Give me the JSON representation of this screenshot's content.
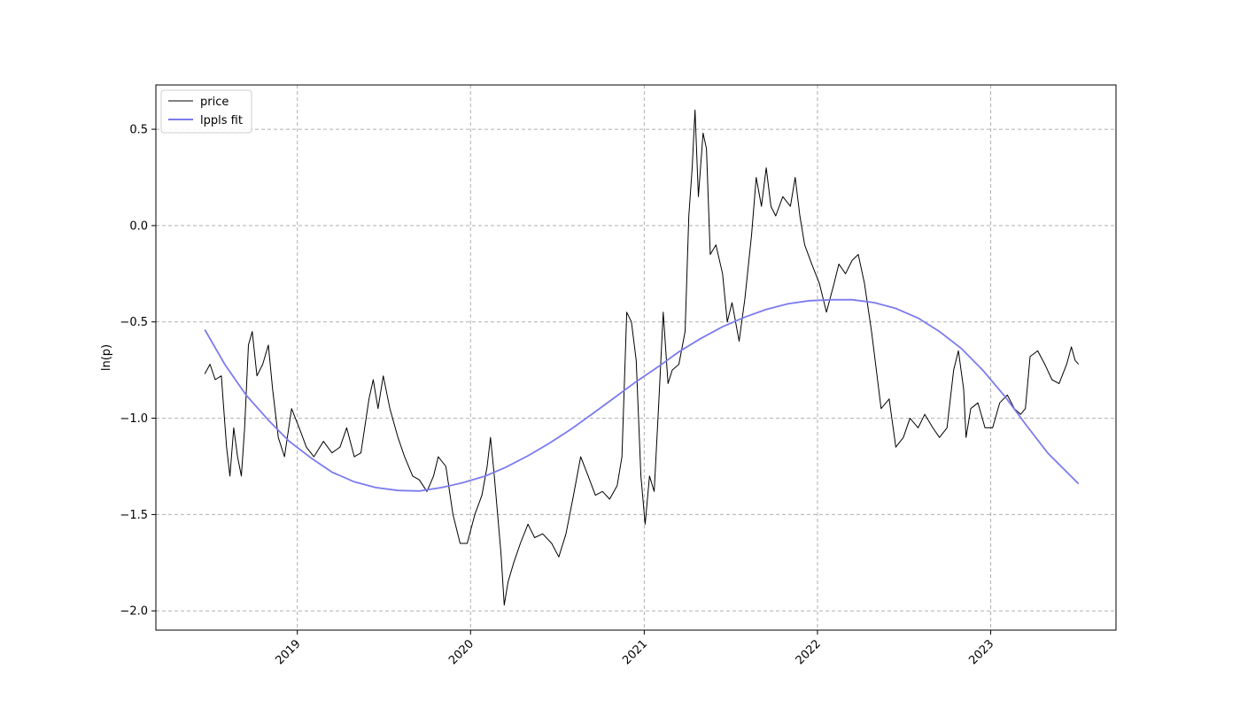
{
  "chart_data": {
    "type": "line",
    "title": "",
    "xlabel": "",
    "ylabel": "ln(p)",
    "xlim": [
      "2018-03-09",
      "2023-09-22"
    ],
    "ylim": [
      -2.1,
      0.73
    ],
    "grid": true,
    "legend_position": "top-left",
    "x_ticks": [
      {
        "date": "2019-01-01",
        "label": "2019"
      },
      {
        "date": "2020-01-01",
        "label": "2020"
      },
      {
        "date": "2021-01-01",
        "label": "2021"
      },
      {
        "date": "2022-01-01",
        "label": "2022"
      },
      {
        "date": "2023-01-01",
        "label": "2023"
      }
    ],
    "y_ticks": [
      {
        "value": 0.5,
        "label": "0.5"
      },
      {
        "value": 0.0,
        "label": "0.0"
      },
      {
        "value": -0.5,
        "label": "−0.5"
      },
      {
        "value": -1.0,
        "label": "−1.0"
      },
      {
        "value": -1.5,
        "label": "−1.5"
      },
      {
        "value": -2.0,
        "label": "−2.0"
      }
    ],
    "series": [
      {
        "name": "price",
        "color": "#000000",
        "points": [
          [
            "2018-06-20",
            -0.77
          ],
          [
            "2018-07-01",
            -0.72
          ],
          [
            "2018-07-12",
            -0.8
          ],
          [
            "2018-07-25",
            -0.78
          ],
          [
            "2018-08-05",
            -1.15
          ],
          [
            "2018-08-12",
            -1.3
          ],
          [
            "2018-08-20",
            -1.05
          ],
          [
            "2018-08-28",
            -1.2
          ],
          [
            "2018-09-05",
            -1.3
          ],
          [
            "2018-09-12",
            -1.05
          ],
          [
            "2018-09-20",
            -0.62
          ],
          [
            "2018-09-28",
            -0.55
          ],
          [
            "2018-10-08",
            -0.78
          ],
          [
            "2018-10-20",
            -0.72
          ],
          [
            "2018-11-01",
            -0.62
          ],
          [
            "2018-11-10",
            -0.85
          ],
          [
            "2018-11-22",
            -1.1
          ],
          [
            "2018-12-05",
            -1.2
          ],
          [
            "2018-12-20",
            -0.95
          ],
          [
            "2019-01-05",
            -1.05
          ],
          [
            "2019-01-20",
            -1.15
          ],
          [
            "2019-02-05",
            -1.2
          ],
          [
            "2019-02-25",
            -1.12
          ],
          [
            "2019-03-15",
            -1.18
          ],
          [
            "2019-04-01",
            -1.15
          ],
          [
            "2019-04-15",
            -1.05
          ],
          [
            "2019-05-01",
            -1.2
          ],
          [
            "2019-05-15",
            -1.18
          ],
          [
            "2019-06-01",
            -0.9
          ],
          [
            "2019-06-10",
            -0.8
          ],
          [
            "2019-06-20",
            -0.95
          ],
          [
            "2019-07-01",
            -0.78
          ],
          [
            "2019-07-15",
            -0.95
          ],
          [
            "2019-08-01",
            -1.1
          ],
          [
            "2019-08-15",
            -1.2
          ],
          [
            "2019-09-01",
            -1.3
          ],
          [
            "2019-09-15",
            -1.32
          ],
          [
            "2019-10-01",
            -1.38
          ],
          [
            "2019-10-15",
            -1.3
          ],
          [
            "2019-10-25",
            -1.2
          ],
          [
            "2019-11-10",
            -1.25
          ],
          [
            "2019-11-25",
            -1.5
          ],
          [
            "2019-12-10",
            -1.65
          ],
          [
            "2019-12-25",
            -1.65
          ],
          [
            "2020-01-10",
            -1.5
          ],
          [
            "2020-01-25",
            -1.4
          ],
          [
            "2020-02-05",
            -1.25
          ],
          [
            "2020-02-12",
            -1.1
          ],
          [
            "2020-02-20",
            -1.3
          ],
          [
            "2020-03-05",
            -1.7
          ],
          [
            "2020-03-12",
            -1.97
          ],
          [
            "2020-03-20",
            -1.85
          ],
          [
            "2020-04-01",
            -1.75
          ],
          [
            "2020-04-15",
            -1.65
          ],
          [
            "2020-05-01",
            -1.55
          ],
          [
            "2020-05-15",
            -1.62
          ],
          [
            "2020-06-01",
            -1.6
          ],
          [
            "2020-06-20",
            -1.65
          ],
          [
            "2020-07-05",
            -1.72
          ],
          [
            "2020-07-20",
            -1.6
          ],
          [
            "2020-08-05",
            -1.4
          ],
          [
            "2020-08-20",
            -1.2
          ],
          [
            "2020-09-05",
            -1.3
          ],
          [
            "2020-09-20",
            -1.4
          ],
          [
            "2020-10-05",
            -1.38
          ],
          [
            "2020-10-20",
            -1.42
          ],
          [
            "2020-11-05",
            -1.35
          ],
          [
            "2020-11-15",
            -1.2
          ],
          [
            "2020-11-25",
            -0.45
          ],
          [
            "2020-12-05",
            -0.5
          ],
          [
            "2020-12-15",
            -0.7
          ],
          [
            "2020-12-25",
            -1.3
          ],
          [
            "2021-01-03",
            -1.55
          ],
          [
            "2021-01-12",
            -1.3
          ],
          [
            "2021-01-22",
            -1.38
          ],
          [
            "2021-02-01",
            -0.9
          ],
          [
            "2021-02-10",
            -0.45
          ],
          [
            "2021-02-20",
            -0.82
          ],
          [
            "2021-03-01",
            -0.75
          ],
          [
            "2021-03-15",
            -0.72
          ],
          [
            "2021-03-28",
            -0.55
          ],
          [
            "2021-04-05",
            0.05
          ],
          [
            "2021-04-12",
            0.3
          ],
          [
            "2021-04-18",
            0.6
          ],
          [
            "2021-04-25",
            0.15
          ],
          [
            "2021-05-05",
            0.48
          ],
          [
            "2021-05-12",
            0.4
          ],
          [
            "2021-05-20",
            -0.15
          ],
          [
            "2021-06-01",
            -0.1
          ],
          [
            "2021-06-15",
            -0.25
          ],
          [
            "2021-06-25",
            -0.5
          ],
          [
            "2021-07-05",
            -0.4
          ],
          [
            "2021-07-20",
            -0.6
          ],
          [
            "2021-08-01",
            -0.38
          ],
          [
            "2021-08-15",
            -0.05
          ],
          [
            "2021-08-25",
            0.25
          ],
          [
            "2021-09-05",
            0.1
          ],
          [
            "2021-09-15",
            0.3
          ],
          [
            "2021-09-25",
            0.1
          ],
          [
            "2021-10-05",
            0.05
          ],
          [
            "2021-10-20",
            0.15
          ],
          [
            "2021-11-05",
            0.1
          ],
          [
            "2021-11-15",
            0.25
          ],
          [
            "2021-11-25",
            0.05
          ],
          [
            "2021-12-05",
            -0.1
          ],
          [
            "2021-12-20",
            -0.2
          ],
          [
            "2022-01-05",
            -0.3
          ],
          [
            "2022-01-20",
            -0.45
          ],
          [
            "2022-02-05",
            -0.3
          ],
          [
            "2022-02-15",
            -0.2
          ],
          [
            "2022-03-01",
            -0.25
          ],
          [
            "2022-03-15",
            -0.18
          ],
          [
            "2022-03-28",
            -0.15
          ],
          [
            "2022-04-10",
            -0.3
          ],
          [
            "2022-04-25",
            -0.55
          ],
          [
            "2022-05-05",
            -0.75
          ],
          [
            "2022-05-15",
            -0.95
          ],
          [
            "2022-06-01",
            -0.9
          ],
          [
            "2022-06-15",
            -1.15
          ],
          [
            "2022-07-01",
            -1.1
          ],
          [
            "2022-07-15",
            -1.0
          ],
          [
            "2022-08-01",
            -1.05
          ],
          [
            "2022-08-15",
            -0.98
          ],
          [
            "2022-09-01",
            -1.05
          ],
          [
            "2022-09-15",
            -1.1
          ],
          [
            "2022-10-01",
            -1.05
          ],
          [
            "2022-10-15",
            -0.75
          ],
          [
            "2022-10-25",
            -0.65
          ],
          [
            "2022-11-05",
            -0.85
          ],
          [
            "2022-11-10",
            -1.1
          ],
          [
            "2022-11-20",
            -0.95
          ],
          [
            "2022-12-05",
            -0.92
          ],
          [
            "2022-12-20",
            -1.05
          ],
          [
            "2023-01-05",
            -1.05
          ],
          [
            "2023-01-20",
            -0.92
          ],
          [
            "2023-02-05",
            -0.88
          ],
          [
            "2023-02-20",
            -0.95
          ],
          [
            "2023-03-05",
            -0.98
          ],
          [
            "2023-03-15",
            -0.95
          ],
          [
            "2023-03-25",
            -0.68
          ],
          [
            "2023-04-10",
            -0.65
          ],
          [
            "2023-04-25",
            -0.72
          ],
          [
            "2023-05-10",
            -0.8
          ],
          [
            "2023-05-25",
            -0.82
          ],
          [
            "2023-06-10",
            -0.72
          ],
          [
            "2023-06-20",
            -0.63
          ],
          [
            "2023-06-28",
            -0.7
          ],
          [
            "2023-07-05",
            -0.72
          ]
        ]
      },
      {
        "name": "lppls fit",
        "color": "#7b7bef",
        "points": [
          [
            "2018-06-20",
            -0.54
          ],
          [
            "2018-08-01",
            -0.72
          ],
          [
            "2018-09-15",
            -0.88
          ],
          [
            "2018-11-01",
            -1.01
          ],
          [
            "2018-12-15",
            -1.12
          ],
          [
            "2019-02-01",
            -1.21
          ],
          [
            "2019-03-15",
            -1.28
          ],
          [
            "2019-05-01",
            -1.33
          ],
          [
            "2019-06-15",
            -1.36
          ],
          [
            "2019-08-01",
            -1.375
          ],
          [
            "2019-09-15",
            -1.378
          ],
          [
            "2019-11-01",
            -1.36
          ],
          [
            "2019-12-15",
            -1.335
          ],
          [
            "2020-02-01",
            -1.3
          ],
          [
            "2020-03-15",
            -1.255
          ],
          [
            "2020-05-01",
            -1.195
          ],
          [
            "2020-06-15",
            -1.13
          ],
          [
            "2020-08-01",
            -1.055
          ],
          [
            "2020-09-15",
            -0.975
          ],
          [
            "2020-11-01",
            -0.89
          ],
          [
            "2020-12-15",
            -0.81
          ],
          [
            "2021-02-01",
            -0.73
          ],
          [
            "2021-03-15",
            -0.655
          ],
          [
            "2021-05-01",
            -0.585
          ],
          [
            "2021-06-15",
            -0.525
          ],
          [
            "2021-08-01",
            -0.475
          ],
          [
            "2021-09-15",
            -0.435
          ],
          [
            "2021-11-01",
            -0.405
          ],
          [
            "2021-12-15",
            -0.39
          ],
          [
            "2022-02-01",
            -0.385
          ],
          [
            "2022-03-15",
            -0.385
          ],
          [
            "2022-05-01",
            -0.4
          ],
          [
            "2022-06-15",
            -0.43
          ],
          [
            "2022-08-01",
            -0.48
          ],
          [
            "2022-09-15",
            -0.55
          ],
          [
            "2022-11-01",
            -0.64
          ],
          [
            "2022-12-15",
            -0.75
          ],
          [
            "2023-02-01",
            -0.89
          ],
          [
            "2023-03-15",
            -1.03
          ],
          [
            "2023-05-01",
            -1.18
          ],
          [
            "2023-07-05",
            -1.34
          ]
        ]
      }
    ]
  }
}
